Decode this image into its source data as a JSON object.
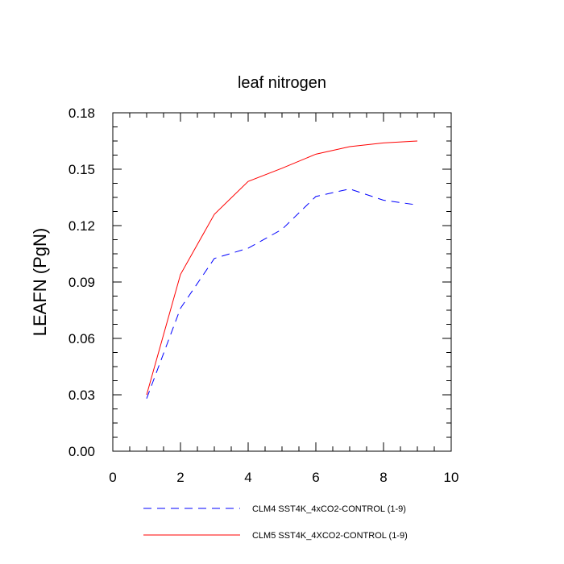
{
  "chart_data": {
    "type": "line",
    "title": "leaf nitrogen",
    "xlabel": "",
    "ylabel": "LEAFN  (PgN)",
    "xlim": [
      0,
      10
    ],
    "ylim": [
      0.0,
      0.18
    ],
    "x_ticks": [
      0,
      2,
      4,
      6,
      8,
      10
    ],
    "x_tick_labels": [
      "0",
      "2",
      "4",
      "6",
      "8",
      "10"
    ],
    "y_ticks": [
      0.0,
      0.03,
      0.06,
      0.09,
      0.12,
      0.15,
      0.18
    ],
    "y_tick_labels": [
      "0.00",
      "0.03",
      "0.06",
      "0.09",
      "0.12",
      "0.15",
      "0.18"
    ],
    "grid": false,
    "legend_position": "bottom",
    "series": [
      {
        "name": "CLM4 SST4K_4xCO2-CONTROL (1-9)",
        "color": "#0000ff",
        "dash": "dashed",
        "x": [
          1,
          2,
          3,
          4,
          5,
          6,
          7,
          8,
          9
        ],
        "y": [
          0.028,
          0.076,
          0.1025,
          0.108,
          0.118,
          0.1355,
          0.1395,
          0.1335,
          0.131
        ]
      },
      {
        "name": "CLM5 SST4K_4XCO2-CONTROL (1-9)",
        "color": "#ff0000",
        "dash": "solid",
        "x": [
          1,
          2,
          3,
          4,
          5,
          6,
          7,
          8,
          9
        ],
        "y": [
          0.03,
          0.094,
          0.126,
          0.1435,
          0.1505,
          0.158,
          0.162,
          0.164,
          0.165
        ]
      }
    ]
  }
}
